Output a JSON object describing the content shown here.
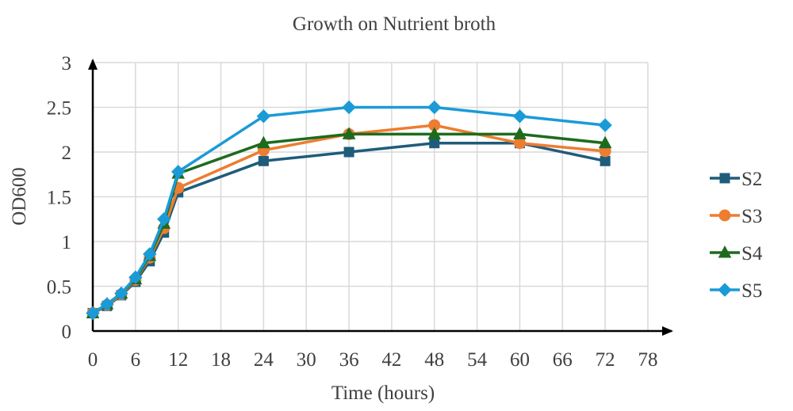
{
  "chart_data": {
    "type": "line",
    "title": "Growth on Nutrient broth",
    "xlabel": "Time (hours)",
    "ylabel": "OD600",
    "xlim": [
      0,
      78
    ],
    "ylim": [
      0,
      3
    ],
    "xticks": [
      0,
      6,
      12,
      18,
      24,
      30,
      36,
      42,
      48,
      54,
      60,
      66,
      72,
      78
    ],
    "yticks": [
      0,
      0.5,
      1,
      1.5,
      2,
      2.5,
      3
    ],
    "xtick_labels": [
      "0",
      "6",
      "12",
      "18",
      "24",
      "30",
      "36",
      "42",
      "48",
      "54",
      "60",
      "66",
      "72",
      "78"
    ],
    "ytick_labels": [
      "0",
      "0.5",
      "1",
      "1.5",
      "2",
      "2.5",
      "3"
    ],
    "grid": true,
    "legend_position": "right",
    "x": [
      0,
      2,
      4,
      6,
      8,
      10,
      12,
      24,
      36,
      48,
      60,
      72
    ],
    "series": [
      {
        "name": "S2",
        "color": "#1f5c7a",
        "marker": "square",
        "values": [
          0.2,
          0.28,
          0.4,
          0.55,
          0.78,
          1.1,
          1.55,
          1.9,
          2.0,
          2.1,
          2.1,
          1.9
        ]
      },
      {
        "name": "S3",
        "color": "#ed7d31",
        "marker": "circle",
        "values": [
          0.2,
          0.29,
          0.41,
          0.57,
          0.82,
          1.15,
          1.6,
          2.02,
          2.2,
          2.3,
          2.1,
          2.01
        ]
      },
      {
        "name": "S4",
        "color": "#1e6b1e",
        "marker": "triangle",
        "values": [
          0.2,
          0.3,
          0.42,
          0.58,
          0.84,
          1.2,
          1.76,
          2.1,
          2.2,
          2.2,
          2.2,
          2.1
        ]
      },
      {
        "name": "S5",
        "color": "#1a9bd7",
        "marker": "diamond",
        "values": [
          0.2,
          0.3,
          0.42,
          0.6,
          0.86,
          1.25,
          1.78,
          2.4,
          2.5,
          2.5,
          2.4,
          2.3
        ]
      }
    ]
  }
}
